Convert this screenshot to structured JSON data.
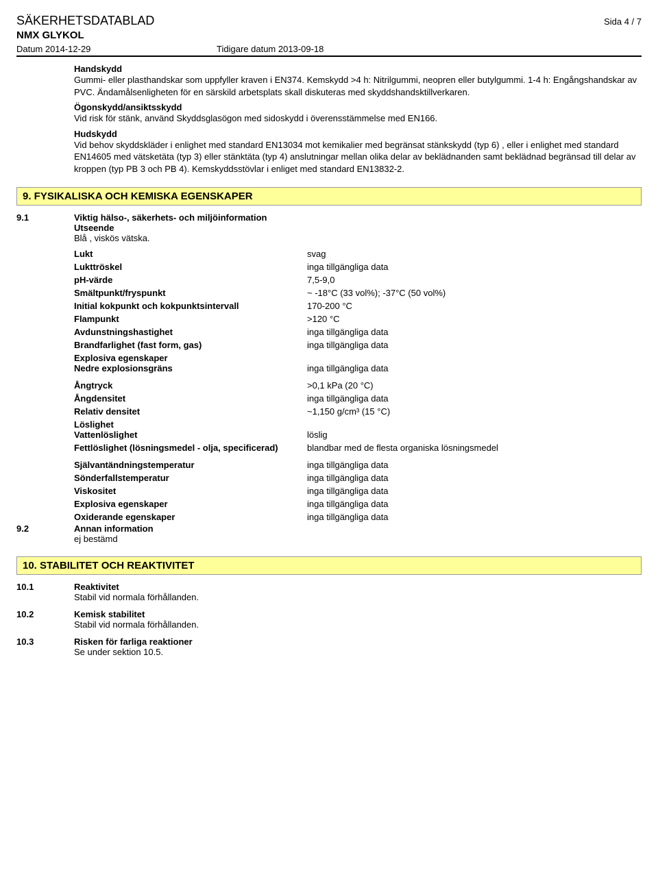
{
  "header": {
    "doc_title": "SÄKERHETSDATABLAD",
    "page_label": "Sida  4 / 7",
    "product_name": "NMX GLYKOL",
    "date_label": "Datum 2014-12-29",
    "prev_date_label": "Tidigare datum 2013-09-18"
  },
  "section8": {
    "hand_title": "Handskydd",
    "hand_text": "Gummi- eller plasthandskar som uppfyller kraven i EN374. Kemskydd  >4 h: Nitrilgummi, neopren eller butylgummi. 1-4 h: Engångshandskar av PVC. Ändamålsenligheten för en särskild arbetsplats skall diskuteras med skyddshandsktillverkaren.",
    "eye_title": "Ögonskydd/ansiktsskydd",
    "eye_text": "Vid risk för stänk, använd  Skyddsglasögon med sidoskydd i överensstämmelse med EN166.",
    "skin_title": "Hudskydd",
    "skin_text": "Vid behov skyddskläder i enlighet med standard EN13034 mot kemikalier med begränsat stänkskydd (typ 6) , eller i enlighet med standard EN14605 med vätsketäta (typ 3) eller stänktäta (typ 4) anslutningar mellan olika delar av beklädnanden samt beklädnad begränsad till delar av kroppen (typ PB 3 och PB 4). Kemskyddsstövlar i enliget med standard EN13832-2."
  },
  "section9": {
    "header": "9. FYSIKALISKA OCH KEMISKA EGENSKAPER",
    "s91_num": "9.1",
    "s91_title": "Viktig hälso-, säkerhets- och miljöinformation",
    "utseende_label": "Utseende",
    "utseende_value": "Blå , viskös vätska.",
    "props": [
      {
        "label": "Lukt",
        "value": "svag"
      },
      {
        "label": "Lukttröskel",
        "value": "inga tillgängliga data"
      },
      {
        "label": "pH-värde",
        "value": "7,5-9,0"
      },
      {
        "label": "Smältpunkt/fryspunkt",
        "value": "~ -18°C (33 vol%); -37°C (50 vol%)"
      },
      {
        "label": "Initial kokpunkt och kokpunktsintervall",
        "value": "170-200 °C"
      },
      {
        "label": "Flampunkt",
        "value": ">120 °C"
      },
      {
        "label": "Avdunstningshastighet",
        "value": "inga tillgängliga data"
      },
      {
        "label": "Brandfarlighet (fast form, gas)",
        "value": "inga tillgängliga data"
      }
    ],
    "explosive_label": "Explosiva egenskaper",
    "explosive_row": {
      "label": "Nedre explosionsgräns",
      "value": "inga tillgängliga data"
    },
    "props2": [
      {
        "label": "Ångtryck",
        "value": ">0,1 kPa (20 °C)"
      },
      {
        "label": "Ångdensitet",
        "value": "inga tillgängliga data"
      },
      {
        "label": "Relativ densitet",
        "value": "~1,150 g/cm³ (15 °C)"
      }
    ],
    "solubility_label": "Löslighet",
    "solubility_row": {
      "label": "Vattenlöslighet",
      "value": "löslig"
    },
    "fat_row": {
      "label": "Fettlöslighet (lösningsmedel - olja, specificerad)",
      "value": "blandbar med de flesta organiska lösningsmedel"
    },
    "props3": [
      {
        "label": "Självantändningstemperatur",
        "value": "inga tillgängliga data"
      },
      {
        "label": "Sönderfallstemperatur",
        "value": "inga tillgängliga data"
      },
      {
        "label": "Viskositet",
        "value": "inga tillgängliga data"
      },
      {
        "label": "Explosiva egenskaper",
        "value": "inga tillgängliga data"
      },
      {
        "label": "Oxiderande egenskaper",
        "value": "inga tillgängliga data"
      }
    ],
    "s92_num": "9.2",
    "s92_title": "Annan information",
    "s92_text": "ej bestämd"
  },
  "section10": {
    "header": "10. STABILITET OCH REAKTIVITET",
    "rows": [
      {
        "num": "10.1",
        "title": "Reaktivitet",
        "text": "Stabil vid normala förhållanden."
      },
      {
        "num": "10.2",
        "title": "Kemisk stabilitet",
        "text": "Stabil vid normala förhållanden."
      },
      {
        "num": "10.3",
        "title": "Risken för farliga reaktioner",
        "text": "Se under sektion 10.5."
      }
    ]
  }
}
